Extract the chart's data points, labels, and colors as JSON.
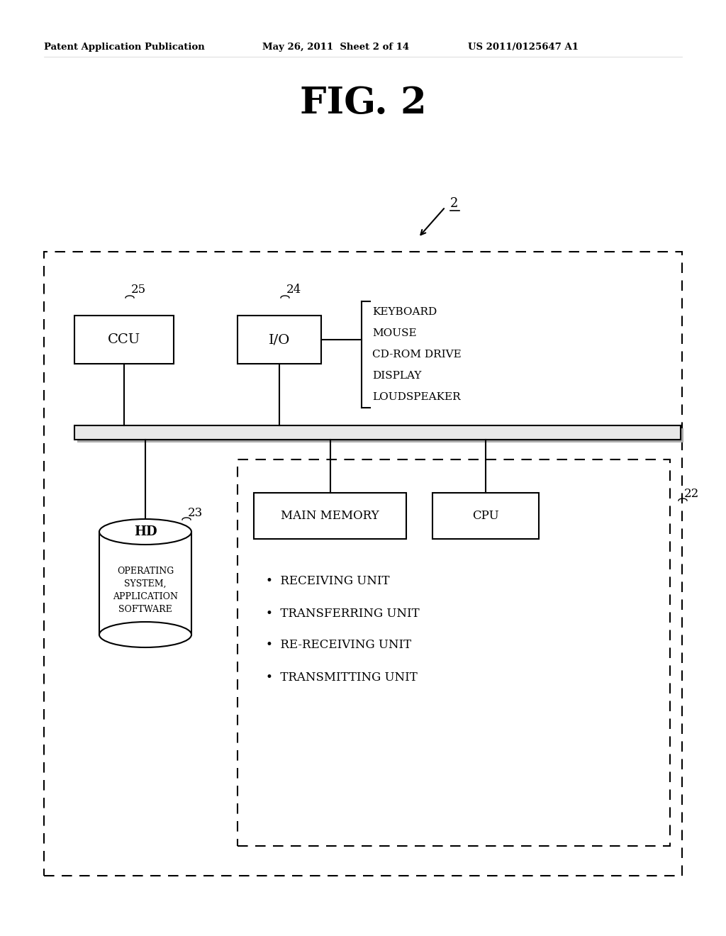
{
  "bg_color": "#ffffff",
  "header_left": "Patent Application Publication",
  "header_mid": "May 26, 2011  Sheet 2 of 14",
  "header_right": "US 2011/0125647 A1",
  "fig_title": "FIG. 2",
  "ref_num_2": "2",
  "ref_num_22": "22",
  "ref_num_23": "23",
  "ref_num_24": "24",
  "ref_num_25": "25",
  "ccu_label": "CCU",
  "io_label": "I/O",
  "main_memory_label": "MAIN MEMORY",
  "cpu_label": "CPU",
  "hd_top_label": "HD",
  "hd_body_label": "OPERATING\nSYSTEM,\nAPPLICATION\nSOFTWARE",
  "io_list": [
    "KEYBOARD",
    "MOUSE",
    "CD-ROM DRIVE",
    "DISPLAY",
    "LOUDSPEAKER"
  ],
  "bullet_list": [
    "•  RECEIVING UNIT",
    "•  TRANSFERRING UNIT",
    "•  RE-RECEIVING UNIT",
    "•  TRANSMITTING UNIT"
  ],
  "font_color": "#000000",
  "box_color": "#000000"
}
